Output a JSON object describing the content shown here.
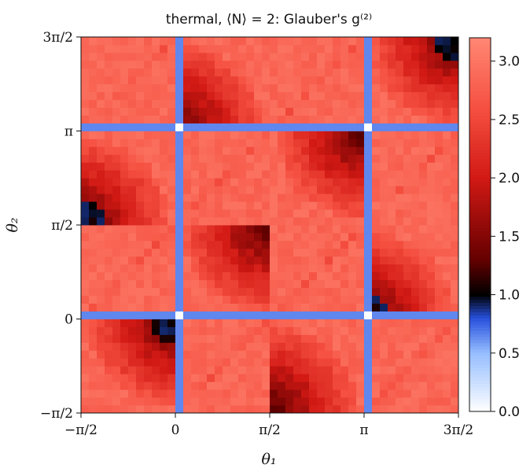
{
  "chart_data": {
    "type": "heatmap",
    "title": "thermal, ⟨N⟩ = 2: Glauber's g⁽²⁾",
    "xlabel": "θ₁",
    "ylabel": "θ₂",
    "x_ticks": [
      "−π/2",
      "0",
      "π/2",
      "π",
      "3π/2"
    ],
    "y_ticks": [
      "−π/2",
      "0",
      "π/2",
      "π",
      "3π/2"
    ],
    "x_range": [
      "-π/2",
      "3π/2"
    ],
    "y_range": [
      "-π/2",
      "3π/2"
    ],
    "grid_resolution": 48,
    "colorbar": {
      "ticks": [
        "0.0",
        "0.5",
        "1.0",
        "1.5",
        "2.0",
        "2.5",
        "3.0"
      ],
      "tick_values": [
        0,
        0.5,
        1.0,
        1.5,
        2.0,
        2.5,
        3.0
      ],
      "range": [
        0,
        3.2
      ],
      "colormap": "white-blue-black-red-salmon"
    },
    "description_values": {
      "background_level": 3.0,
      "line_level": 0.6,
      "cross_level": 0.0,
      "blue_spot_level": 0.9
    }
  }
}
